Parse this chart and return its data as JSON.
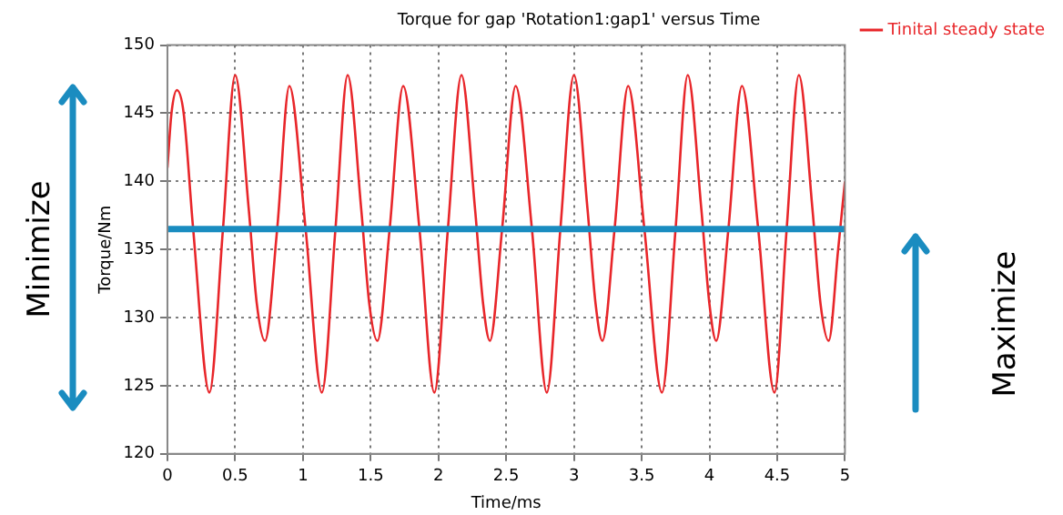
{
  "chart_data": {
    "type": "line",
    "title": "Torque for gap 'Rotation1:gap1' versus Time",
    "xlabel": "Time/ms",
    "ylabel": "Torque/Nm",
    "xlim": [
      0,
      5
    ],
    "xticks": [
      0,
      0.5,
      1,
      1.5,
      2,
      2.5,
      3,
      3.5,
      4,
      4.5,
      5
    ],
    "ylim": [
      120,
      150
    ],
    "yticks": [
      120,
      125,
      130,
      135,
      140,
      145,
      150
    ],
    "grid": true,
    "legend": "top right",
    "marker": "none",
    "line_style": "solid",
    "series": [
      {
        "name": "Tinital steady state",
        "color": "#e8262a",
        "x": [
          0,
          0.03,
          0.07,
          0.12,
          0.19,
          0.31,
          0.41,
          0.5,
          0.6,
          0.66,
          0.72,
          0.81,
          0.9,
          1.02,
          1.14,
          1.24,
          1.33,
          1.43,
          1.49,
          1.55,
          1.64,
          1.74,
          1.86,
          1.97,
          2.07,
          2.17,
          2.27,
          2.33,
          2.38,
          2.47,
          2.57,
          2.69,
          2.8,
          2.9,
          3,
          3.1,
          3.16,
          3.21,
          3.3,
          3.4,
          3.52,
          3.65,
          3.75,
          3.84,
          3.94,
          4,
          4.05,
          4.14,
          4.24,
          4.36,
          4.48,
          4.57,
          4.66,
          4.76,
          4.82,
          4.88,
          4.95,
          5
        ],
        "values": [
          141,
          145,
          146.7,
          145,
          136.5,
          124.5,
          136.5,
          147.8,
          138,
          131,
          128.3,
          136.5,
          147,
          136.5,
          124.5,
          136.5,
          147.8,
          138,
          131,
          128.3,
          136.5,
          147,
          136.5,
          124.5,
          136.5,
          147.8,
          138,
          131,
          128.3,
          136.5,
          147,
          136.5,
          124.5,
          136.5,
          147.8,
          138,
          131,
          128.3,
          136.5,
          147,
          136.5,
          124.5,
          136.5,
          147.8,
          138,
          131,
          128.3,
          136.5,
          147,
          136.5,
          124.5,
          136.5,
          147.8,
          138,
          131,
          128.3,
          135,
          140
        ]
      }
    ],
    "ref_lines": [
      {
        "axis": "y",
        "value": 136.5,
        "color": "#1a8cc0"
      }
    ],
    "annotations": [
      "Minimize",
      "Maximize"
    ]
  }
}
